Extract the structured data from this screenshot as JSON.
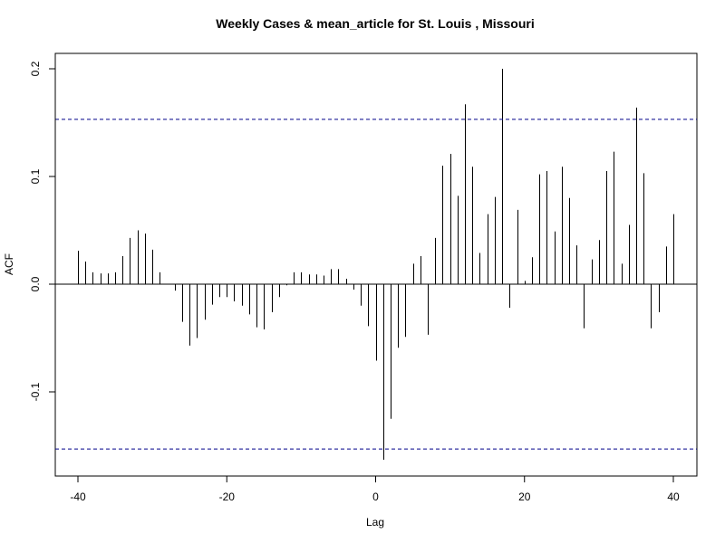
{
  "chart_data": {
    "type": "bar",
    "title": "Weekly Cases & mean_article for St. Louis , Missouri",
    "xlabel": "Lag",
    "ylabel": "ACF",
    "xlim": [
      -40,
      40
    ],
    "ylim": [
      -0.165,
      0.2
    ],
    "x_ticks": [
      -40,
      -20,
      0,
      20,
      40
    ],
    "x_tick_labels": [
      "-40",
      "-20",
      "0",
      "20",
      "40"
    ],
    "y_ticks": [
      -0.1,
      0.0,
      0.1,
      0.2
    ],
    "y_tick_labels": [
      "-0.1",
      "0.0",
      "0.1",
      "0.2"
    ],
    "confidence_bound": 0.153,
    "confidence_color": "#00008b",
    "bar_color": "#000000",
    "grid": false,
    "legend": "none",
    "x": [
      -40,
      -39,
      -38,
      -37,
      -36,
      -35,
      -34,
      -33,
      -32,
      -31,
      -30,
      -29,
      -28,
      -27,
      -26,
      -25,
      -24,
      -23,
      -22,
      -21,
      -20,
      -19,
      -18,
      -17,
      -16,
      -15,
      -14,
      -13,
      -12,
      -11,
      -10,
      -9,
      -8,
      -7,
      -6,
      -5,
      -4,
      -3,
      -2,
      -1,
      0,
      1,
      2,
      3,
      4,
      5,
      6,
      7,
      8,
      9,
      10,
      11,
      12,
      13,
      14,
      15,
      16,
      17,
      18,
      19,
      20,
      21,
      22,
      23,
      24,
      25,
      26,
      27,
      28,
      29,
      30,
      31,
      32,
      33,
      34,
      35,
      36,
      37,
      38,
      39,
      40
    ],
    "values": [
      0.031,
      0.021,
      0.011,
      0.01,
      0.01,
      0.011,
      0.026,
      0.043,
      0.05,
      0.047,
      0.032,
      0.011,
      0.0,
      -0.006,
      -0.035,
      -0.057,
      -0.05,
      -0.033,
      -0.019,
      -0.012,
      -0.012,
      -0.016,
      -0.02,
      -0.028,
      -0.04,
      -0.042,
      -0.026,
      -0.012,
      -0.001,
      0.011,
      0.011,
      0.009,
      0.009,
      0.008,
      0.014,
      0.014,
      0.005,
      -0.005,
      -0.02,
      -0.039,
      -0.071,
      -0.163,
      -0.125,
      -0.059,
      -0.049,
      0.019,
      0.026,
      -0.047,
      0.043,
      0.11,
      0.121,
      0.082,
      0.167,
      0.109,
      0.029,
      0.065,
      0.081,
      0.2,
      -0.022,
      0.069,
      0.003,
      0.025,
      0.102,
      0.105,
      0.049,
      0.109,
      0.08,
      0.036,
      -0.041,
      0.023,
      0.041,
      0.105,
      0.123,
      0.019,
      0.055,
      0.164,
      0.103,
      -0.041,
      -0.026,
      0.035,
      0.065
    ]
  }
}
